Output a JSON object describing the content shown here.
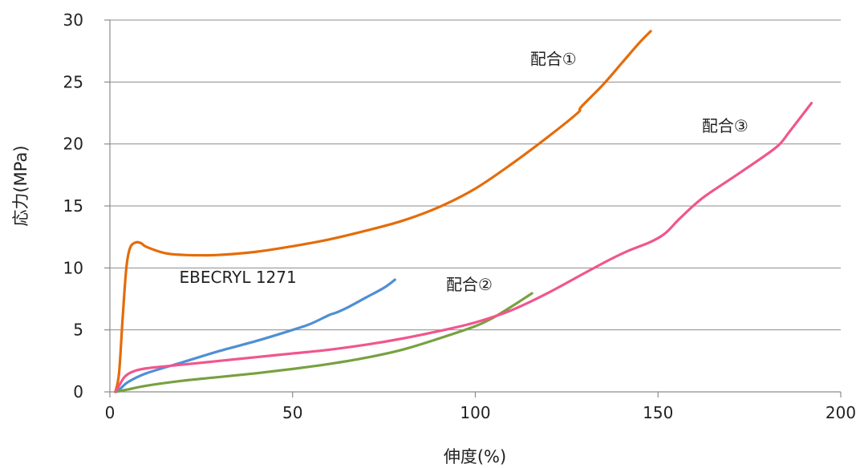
{
  "chart_data": {
    "type": "line",
    "title": "",
    "xlabel": "伸度(%)",
    "ylabel": "応力(MPa)",
    "xlim": [
      0,
      200
    ],
    "ylim": [
      0,
      30
    ],
    "x_ticks": [
      0,
      50,
      100,
      150,
      200
    ],
    "y_ticks": [
      0,
      5,
      10,
      15,
      20,
      25,
      30
    ],
    "grid": true,
    "legend": "none",
    "series": [
      {
        "name": "配合①",
        "color": "#e46c0a",
        "points": [
          [
            1.5,
            0
          ],
          [
            2.5,
            1.5
          ],
          [
            3.5,
            6
          ],
          [
            4.5,
            10
          ],
          [
            5.5,
            11.6
          ],
          [
            7,
            12.05
          ],
          [
            8.5,
            12.0
          ],
          [
            10,
            11.7
          ],
          [
            15,
            11.2
          ],
          [
            20,
            11.05
          ],
          [
            25,
            11.02
          ],
          [
            30,
            11.05
          ],
          [
            40,
            11.3
          ],
          [
            50,
            11.75
          ],
          [
            60,
            12.3
          ],
          [
            70,
            13.0
          ],
          [
            80,
            13.8
          ],
          [
            90,
            14.9
          ],
          [
            100,
            16.4
          ],
          [
            110,
            18.4
          ],
          [
            120,
            20.6
          ],
          [
            128,
            22.5
          ],
          [
            129,
            23.0
          ],
          [
            135,
            24.8
          ],
          [
            140,
            26.5
          ],
          [
            145,
            28.2
          ],
          [
            148,
            29.1
          ]
        ]
      },
      {
        "name": "EBECRYL 1271",
        "color": "#4f8fd4",
        "points": [
          [
            1.5,
            0
          ],
          [
            3,
            0.3
          ],
          [
            5,
            0.8
          ],
          [
            10,
            1.5
          ],
          [
            20,
            2.4
          ],
          [
            30,
            3.3
          ],
          [
            40,
            4.1
          ],
          [
            50,
            5.0
          ],
          [
            55,
            5.5
          ],
          [
            60,
            6.2
          ],
          [
            62,
            6.4
          ],
          [
            65,
            6.8
          ],
          [
            70,
            7.6
          ],
          [
            75,
            8.4
          ],
          [
            78,
            9.05
          ]
        ]
      },
      {
        "name": "配合②",
        "color": "#77a140",
        "points": [
          [
            1.5,
            0
          ],
          [
            5,
            0.2
          ],
          [
            10,
            0.5
          ],
          [
            20,
            0.9
          ],
          [
            30,
            1.2
          ],
          [
            40,
            1.5
          ],
          [
            50,
            1.85
          ],
          [
            60,
            2.25
          ],
          [
            70,
            2.75
          ],
          [
            80,
            3.4
          ],
          [
            90,
            4.3
          ],
          [
            100,
            5.3
          ],
          [
            105,
            6.0
          ],
          [
            110,
            6.9
          ],
          [
            115.5,
            7.95
          ]
        ]
      },
      {
        "name": "配合③",
        "color": "#f0568e",
        "points": [
          [
            1.5,
            0
          ],
          [
            2.5,
            0.5
          ],
          [
            4,
            1.2
          ],
          [
            6,
            1.6
          ],
          [
            10,
            1.9
          ],
          [
            20,
            2.2
          ],
          [
            30,
            2.5
          ],
          [
            40,
            2.8
          ],
          [
            50,
            3.1
          ],
          [
            60,
            3.4
          ],
          [
            70,
            3.8
          ],
          [
            80,
            4.3
          ],
          [
            90,
            4.9
          ],
          [
            100,
            5.6
          ],
          [
            110,
            6.6
          ],
          [
            120,
            8.0
          ],
          [
            130,
            9.6
          ],
          [
            137,
            10.7
          ],
          [
            142,
            11.4
          ],
          [
            148,
            12.1
          ],
          [
            152,
            12.8
          ],
          [
            156,
            14.0
          ],
          [
            162,
            15.6
          ],
          [
            170,
            17.2
          ],
          [
            178,
            18.8
          ],
          [
            183,
            19.9
          ],
          [
            186,
            21.0
          ],
          [
            192,
            23.3
          ]
        ]
      }
    ],
    "annotations": [
      {
        "text": "配合①",
        "x": 115,
        "y": 26.4
      },
      {
        "text": "配合③",
        "x": 162,
        "y": 21.0
      },
      {
        "text": "EBECRYL 1271",
        "x": 19,
        "y": 8.8
      },
      {
        "text": "配合②",
        "x": 92,
        "y": 8.2
      }
    ]
  }
}
